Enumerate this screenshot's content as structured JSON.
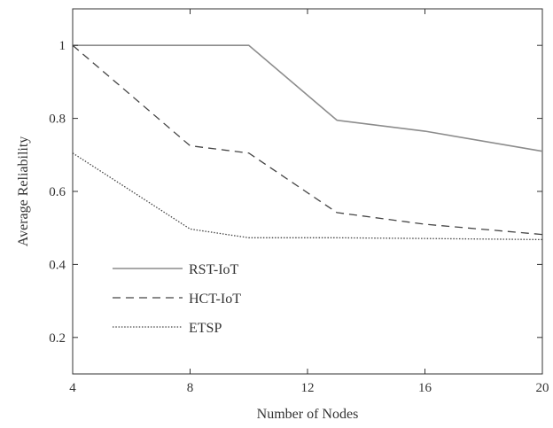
{
  "chart_data": {
    "type": "line",
    "title": "",
    "xlabel": "Number of Nodes",
    "ylabel": "Average Reliability",
    "xlim": [
      4,
      20
    ],
    "ylim": [
      0.1,
      1.1
    ],
    "xticks": [
      4,
      8,
      12,
      16,
      20
    ],
    "yticks": [
      0.2,
      0.4,
      0.6,
      0.8,
      1
    ],
    "grid": false,
    "legend_position": "lower-left",
    "series": [
      {
        "name": "RST-IoT",
        "line_style": "solid",
        "color": "#8c8c8c",
        "x": [
          4,
          10,
          13,
          16,
          20
        ],
        "y": [
          1.0,
          1.0,
          0.795,
          0.765,
          0.71
        ]
      },
      {
        "name": "HCT-IoT",
        "line_style": "dashed",
        "color": "#444444",
        "x": [
          4,
          8,
          10,
          13,
          16,
          20
        ],
        "y": [
          1.0,
          0.725,
          0.705,
          0.542,
          0.51,
          0.482
        ]
      },
      {
        "name": "ETSP",
        "line_style": "dotted",
        "color": "#444444",
        "x": [
          4,
          8,
          10,
          13,
          16,
          20
        ],
        "y": [
          0.705,
          0.497,
          0.473,
          0.473,
          0.471,
          0.468
        ]
      }
    ]
  }
}
